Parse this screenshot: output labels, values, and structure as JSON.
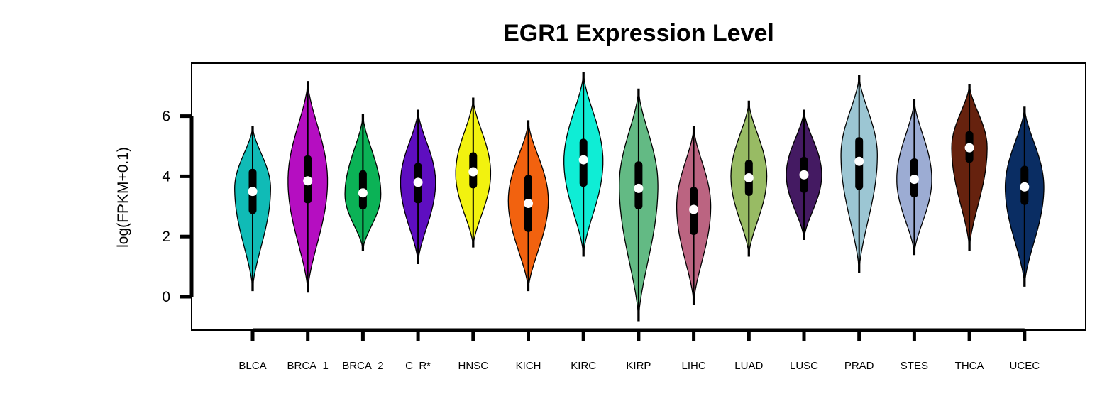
{
  "chart_data": {
    "type": "violin",
    "title": "EGR1 Expression Level",
    "xlabel": "",
    "ylabel": "log(FPKM+0.1)",
    "ylim": [
      -1.1,
      7.8
    ],
    "yticks": [
      0,
      2,
      4,
      6
    ],
    "grid": false,
    "legend": "none",
    "categories": [
      "BLCA",
      "BRCA_1",
      "BRCA_2",
      "C_R*",
      "HNSC",
      "KICH",
      "KIRC",
      "KIRP",
      "LIHC",
      "LUAD",
      "LUSC",
      "PRAD",
      "STES",
      "THCA",
      "UCEC"
    ],
    "series": [
      {
        "category": "BLCA",
        "color": "#10BBB6",
        "min": 0.2,
        "max": 5.65,
        "q1": 2.75,
        "median": 3.5,
        "q3": 4.25,
        "mode": 3.6,
        "peak_width": 0.79
      },
      {
        "category": "BRCA_1",
        "color": "#B50EC1",
        "min": 0.15,
        "max": 7.15,
        "q1": 3.1,
        "median": 3.85,
        "q3": 4.7,
        "mode": 3.85,
        "peak_width": 0.87
      },
      {
        "category": "BRCA_2",
        "color": "#0BB256",
        "min": 1.55,
        "max": 6.05,
        "q1": 2.9,
        "median": 3.45,
        "q3": 4.2,
        "mode": 3.4,
        "peak_width": 0.79
      },
      {
        "category": "C_R*",
        "color": "#5E0EC0",
        "min": 1.1,
        "max": 6.2,
        "q1": 3.1,
        "median": 3.8,
        "q3": 4.45,
        "mode": 3.8,
        "peak_width": 0.77
      },
      {
        "category": "HNSC",
        "color": "#F2F20F",
        "min": 1.65,
        "max": 6.6,
        "q1": 3.6,
        "median": 4.15,
        "q3": 4.8,
        "mode": 4.1,
        "peak_width": 0.77
      },
      {
        "category": "KICH",
        "color": "#F2620F",
        "min": 0.2,
        "max": 5.85,
        "q1": 2.15,
        "median": 3.1,
        "q3": 4.05,
        "mode": 3.2,
        "peak_width": 0.88
      },
      {
        "category": "KIRC",
        "color": "#0FEDD5",
        "min": 1.35,
        "max": 7.45,
        "q1": 3.65,
        "median": 4.55,
        "q3": 5.25,
        "mode": 4.5,
        "peak_width": 0.86
      },
      {
        "category": "KIRP",
        "color": "#63BA84",
        "min": -0.8,
        "max": 6.9,
        "q1": 2.9,
        "median": 3.6,
        "q3": 4.5,
        "mode": 3.7,
        "peak_width": 0.85
      },
      {
        "category": "LIHC",
        "color": "#BB6481",
        "min": -0.25,
        "max": 5.65,
        "q1": 2.05,
        "median": 2.9,
        "q3": 3.65,
        "mode": 3.0,
        "peak_width": 0.75
      },
      {
        "category": "LUAD",
        "color": "#98BB64",
        "min": 1.35,
        "max": 6.5,
        "q1": 3.35,
        "median": 3.95,
        "q3": 4.55,
        "mode": 4.0,
        "peak_width": 0.79
      },
      {
        "category": "LUSC",
        "color": "#441A62",
        "min": 1.9,
        "max": 6.2,
        "q1": 3.45,
        "median": 4.05,
        "q3": 4.65,
        "mode": 4.05,
        "peak_width": 0.78
      },
      {
        "category": "PRAD",
        "color": "#9CC6D3",
        "min": 0.8,
        "max": 7.35,
        "q1": 3.55,
        "median": 4.5,
        "q3": 5.3,
        "mode": 4.7,
        "peak_width": 0.8
      },
      {
        "category": "STES",
        "color": "#9CACD3",
        "min": 1.4,
        "max": 6.55,
        "q1": 3.3,
        "median": 3.9,
        "q3": 4.6,
        "mode": 3.9,
        "peak_width": 0.77
      },
      {
        "category": "THCA",
        "color": "#66220E",
        "min": 1.55,
        "max": 7.05,
        "q1": 4.45,
        "median": 4.95,
        "q3": 5.5,
        "mode": 4.95,
        "peak_width": 0.78
      },
      {
        "category": "UCEC",
        "color": "#0A2D63",
        "min": 0.35,
        "max": 6.3,
        "q1": 3.05,
        "median": 3.65,
        "q3": 4.35,
        "mode": 3.65,
        "peak_width": 0.85
      }
    ]
  }
}
